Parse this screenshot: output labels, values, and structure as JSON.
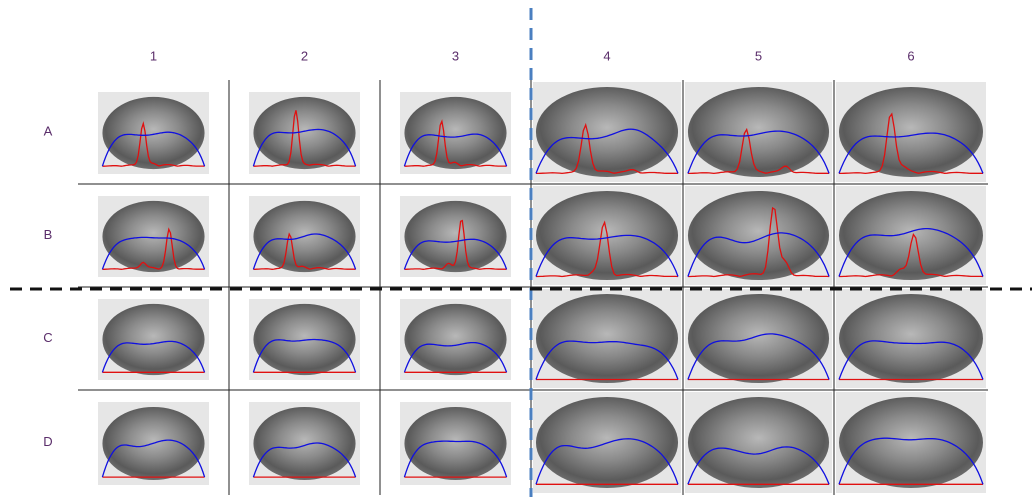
{
  "columns": [
    "1",
    "2",
    "3",
    "4",
    "5",
    "6"
  ],
  "rows": [
    "A",
    "B",
    "C",
    "D"
  ]
}
